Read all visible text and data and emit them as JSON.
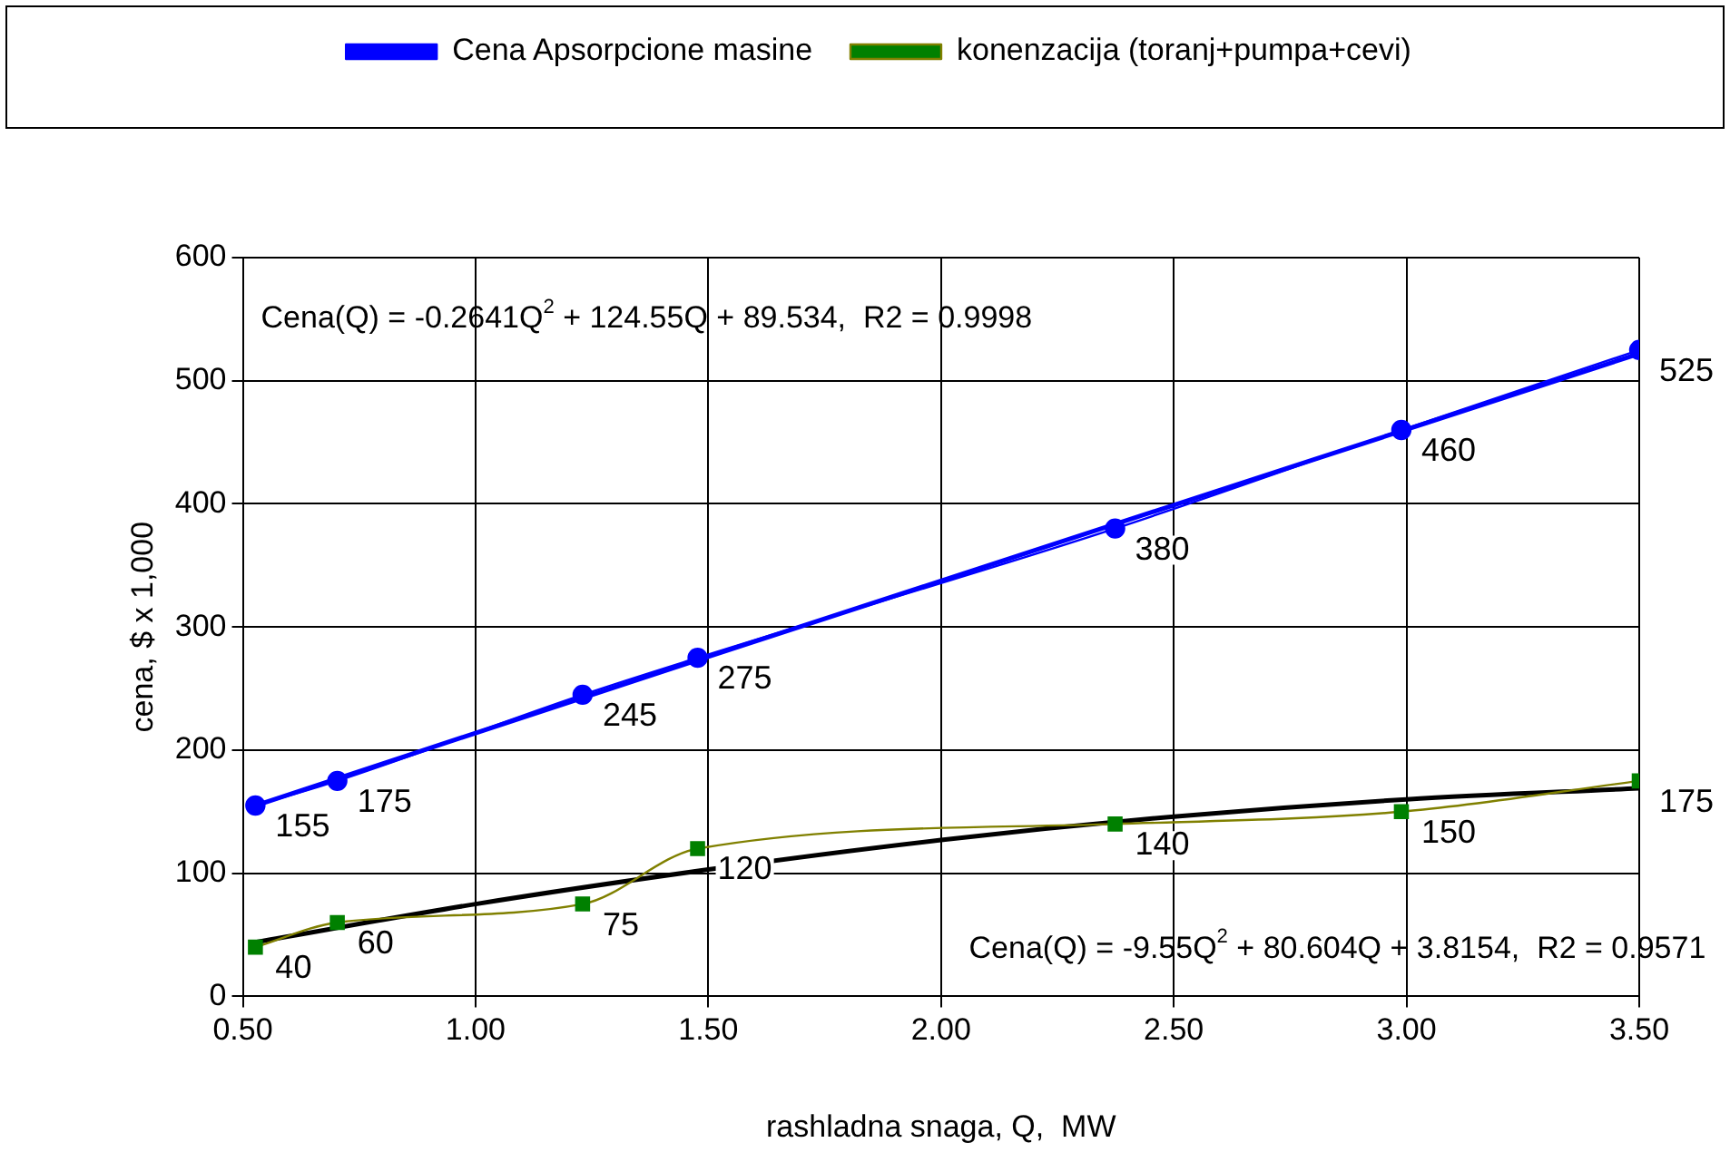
{
  "chart_data": {
    "type": "line",
    "xlabel": "rashladna snaga, Q,  MW",
    "ylabel": "cena, $ x 1,000",
    "x": [
      0.527,
      0.703,
      1.23,
      1.477,
      2.374,
      2.989,
      3.5
    ],
    "series": [
      {
        "name": "Cena Apsorpcione masine",
        "color": "#0000ff",
        "values": [
          155,
          175,
          245,
          275,
          380,
          460,
          525
        ],
        "value_labels": [
          "155",
          "175",
          "245",
          "275",
          "380",
          "460",
          "525"
        ],
        "marker": "circle"
      },
      {
        "name": "konenzacija (toranj+pumpa+cevi)",
        "color": "#008000",
        "values": [
          40,
          60,
          75,
          120,
          140,
          150,
          175
        ],
        "value_labels": [
          "40",
          "60",
          "75",
          "120",
          "140",
          "150",
          "175"
        ],
        "marker": "square"
      },
      {
        "type": "line",
        "color": "#0000ff",
        "x": [
          0.527,
          1.5,
          2.5,
          3.5
        ],
        "values": [
          155,
          276,
          399,
          522
        ],
        "marker": "none"
      },
      {
        "type": "line",
        "color": "#000000",
        "x": [
          0.527,
          1.0,
          1.5,
          2.0,
          2.5,
          3.0,
          3.5
        ],
        "values": [
          44,
          75,
          103,
          127,
          146,
          160,
          169
        ],
        "marker": "none"
      }
    ],
    "xlim": [
      0.5,
      3.5
    ],
    "xticks": [
      {
        "value": 0.5,
        "label": "0.50"
      },
      {
        "value": 1,
        "label": "1.00"
      },
      {
        "value": 1.5,
        "label": "1.50"
      },
      {
        "value": 2,
        "label": "2.00"
      },
      {
        "value": 2.5,
        "label": "2.50"
      },
      {
        "value": 3,
        "label": "3.00"
      },
      {
        "value": 3.5,
        "label": "3.50"
      }
    ],
    "ylim": [
      0,
      600
    ],
    "yticks": [
      0,
      100,
      200,
      300,
      400,
      500,
      600
    ],
    "grid": true,
    "legend": "top",
    "annotations": [
      "Cena(Q) = -0.2641Q$^{2}$ + 124.55Q + 89.534,  R2 = 0.9998",
      "Cena(Q) = -9.55Q$^{2}$ + 80.604Q + 3.8154,  R2 = 0.9571"
    ]
  }
}
